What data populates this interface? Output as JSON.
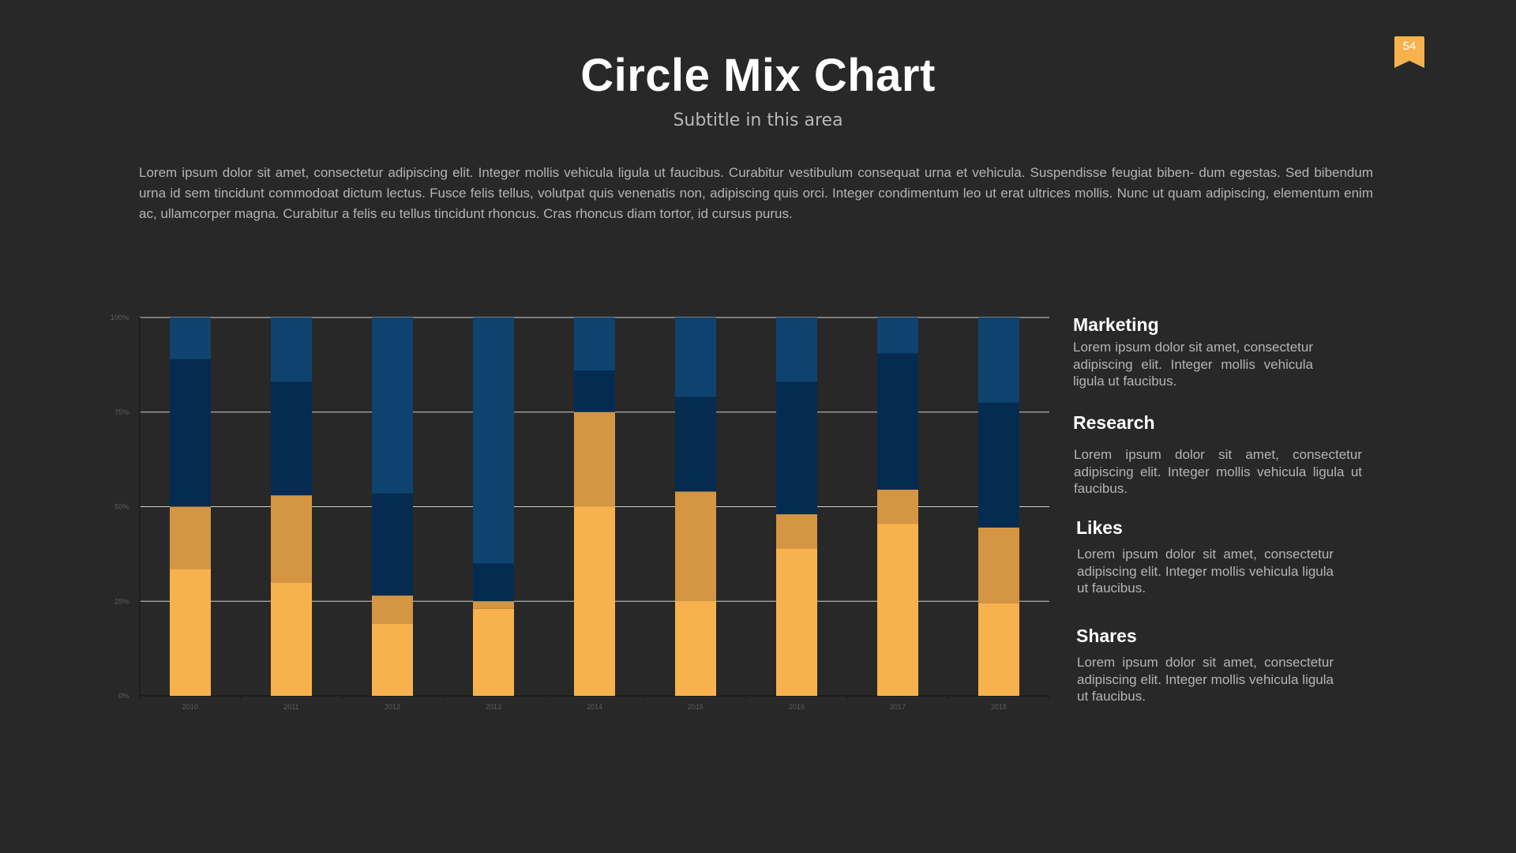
{
  "title": "Circle Mix Chart",
  "subtitle": "Subtitle in this area",
  "page_number": "54",
  "intro": "Lorem ipsum dolor sit amet, consectetur adipiscing elit. Integer mollis vehicula ligula ut faucibus. Curabitur vestibulum consequat urna et vehicula. Suspendisse feugiat biben- dum egestas. Sed bibendum urna id sem tincidunt commodoat dictum lectus. Fusce felis tellus, volutpat quis venenatis non, adipiscing quis orci. Integer condimentum leo ut erat ultrices mollis. Nunc ut quam adipiscing, elementum enim ac, ullamcorper magna. Curabitur a felis eu tellus tincidunt rhoncus. Cras rhoncus diam tortor, id cursus purus.",
  "legend": [
    {
      "title": "Marketing",
      "text": "Lorem ipsum dolor sit amet, consectetur adipiscing elit. Integer mollis vehicula ligula ut faucibus."
    },
    {
      "title": "Research",
      "text": "Lorem ipsum dolor sit amet, consectetur adipiscing elit. Integer mollis vehicula ligula ut faucibus."
    },
    {
      "title": "Likes",
      "text": "Lorem ipsum dolor sit amet, consectetur adipiscing elit. Integer mollis vehicula ligula ut faucibus."
    },
    {
      "title": "Shares",
      "text": "Lorem ipsum dolor sit amet, consectetur adipiscing elit. Integer mollis vehicula ligula ut faucibus."
    }
  ],
  "colors": {
    "accent": "#F7B24D",
    "series": [
      "#F7B24D",
      "#D49642",
      "#062B51",
      "#0E4370"
    ],
    "grid": "#cfcfcf",
    "tick_text": "#5e5e5e"
  },
  "chart_data": {
    "type": "bar",
    "stacked": true,
    "percent": true,
    "categories": [
      "2010",
      "2011",
      "2012",
      "2013",
      "2014",
      "2015",
      "2016",
      "2017",
      "2018"
    ],
    "y_ticks": [
      "0%",
      "25%",
      "50%",
      "75%",
      "100%"
    ],
    "ylim": [
      0,
      100
    ],
    "series": [
      {
        "name": "Shares",
        "values": [
          33.5,
          30,
          19,
          23,
          50,
          25,
          39,
          45.5,
          24.5
        ]
      },
      {
        "name": "Likes",
        "values": [
          16.5,
          23,
          7.5,
          2,
          25,
          29,
          9,
          9,
          20
        ]
      },
      {
        "name": "Research",
        "values": [
          39,
          30,
          27,
          10,
          11,
          25,
          35,
          36,
          33
        ]
      },
      {
        "name": "Marketing",
        "values": [
          11,
          17,
          46.5,
          65,
          14,
          21,
          17,
          9.5,
          22.5
        ]
      }
    ]
  }
}
